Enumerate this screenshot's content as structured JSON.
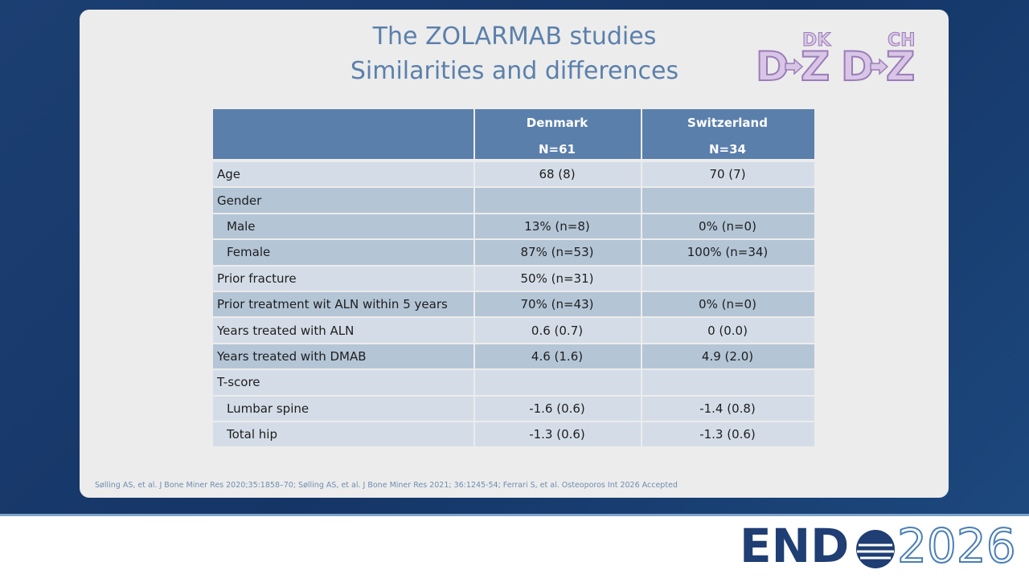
{
  "slide": {
    "title": [
      "The ZOLARMAB studies",
      "Similarities and differences"
    ],
    "logos": [
      {
        "code": "DK",
        "left": "D",
        "right": "Z"
      },
      {
        "code": "CH",
        "left": "D",
        "right": "Z"
      }
    ],
    "table": {
      "columns": [
        {
          "name": "Denmark",
          "n": "N=61"
        },
        {
          "name": "Switzerland",
          "n": "N=34"
        }
      ],
      "rows": [
        {
          "label": "Age",
          "cells": [
            "68 (8)",
            "70 (7)"
          ]
        },
        {
          "label": "Gender",
          "children": [
            {
              "label": "Male",
              "cells": [
                "13% (n=8)",
                "0% (n=0)"
              ]
            },
            {
              "label": "Female",
              "cells": [
                "87% (n=53)",
                "100% (n=34)"
              ]
            }
          ]
        },
        {
          "label": "Prior fracture",
          "cells": [
            "50% (n=31)",
            null
          ]
        },
        {
          "label": "Prior treatment wit ALN within 5 years",
          "cells": [
            "70% (n=43)",
            "0% (n=0)"
          ]
        },
        {
          "label": "Years treated with ALN",
          "cells": [
            "0.6 (0.7)",
            "0 (0.0)"
          ]
        },
        {
          "label": "Years treated with DMAB",
          "cells": [
            "4.6 (1.6)",
            "4.9 (2.0)"
          ]
        },
        {
          "label": "T-score",
          "children": [
            {
              "label": "Lumbar spine",
              "cells": [
                "-1.6 (0.6)",
                "-1.4 (0.8)"
              ]
            },
            {
              "label": "Total hip",
              "cells": [
                "-1.3 (0.6)",
                "-1.3 (0.6)"
              ]
            }
          ]
        }
      ]
    },
    "footnote": "Sølling AS, et al. J Bone Miner Res 2020;35:1858–70; Sølling AS, et al. J Bone Miner Res 2021; 36:1245-54; Ferrari S, et al. Osteoporos Int 2026 Accepted"
  },
  "footer": {
    "left": "END",
    "right": "2026"
  }
}
